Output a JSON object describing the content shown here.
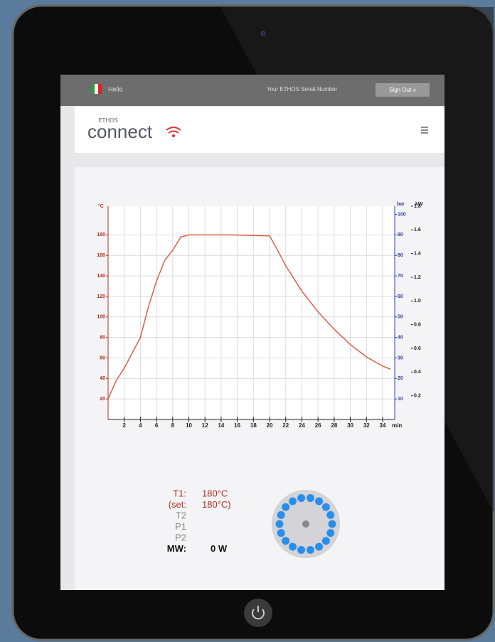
{
  "topbar": {
    "greeting": "Hello",
    "serial_label": "Your ETHOS Serial Number",
    "sign_out": "Sign Out »"
  },
  "header": {
    "logo_small": "ETHOS",
    "logo": "connect"
  },
  "chart": {
    "type": "line",
    "color": "#d9604a",
    "x_unit": "min",
    "y_unit": "°C",
    "y2_unit": "bar",
    "y3_unit": "kW",
    "x": [
      0,
      1,
      2,
      4,
      5,
      6,
      7,
      8,
      9,
      10,
      15,
      20,
      21,
      22,
      24,
      26,
      28,
      30,
      32,
      34,
      35
    ],
    "values": [
      20,
      38,
      50,
      80,
      110,
      135,
      155,
      165,
      178,
      180,
      180,
      179,
      165,
      150,
      125,
      105,
      88,
      73,
      61,
      52,
      49
    ],
    "xlim": [
      0,
      35.5
    ],
    "xticks": [
      2,
      4,
      6,
      8,
      10,
      12,
      14,
      16,
      18,
      20,
      22,
      24,
      26,
      28,
      30,
      32,
      34
    ],
    "ylim": [
      0,
      208
    ],
    "yticks": [
      20,
      40,
      60,
      80,
      100,
      120,
      140,
      160,
      180
    ],
    "y2lim": [
      0,
      104
    ],
    "y2ticks": [
      10,
      20,
      30,
      40,
      50,
      60,
      70,
      80,
      90,
      100
    ],
    "y3lim": [
      0,
      1.8
    ],
    "y3ticks": [
      0.2,
      0.4,
      0.6,
      0.8,
      {
        "value": 1,
        "label": "1.0"
      },
      1.2,
      1.4,
      1.6,
      1.8
    ],
    "grid": true
  },
  "status": [
    {
      "label": "T1:",
      "value": "180°C"
    },
    {
      "label": "(set:",
      "value": "180°C)"
    },
    {
      "label": "T2"
    },
    {
      "label": "P1"
    },
    {
      "label": "P2"
    },
    {
      "label": "MW:",
      "value": "0 W"
    }
  ]
}
